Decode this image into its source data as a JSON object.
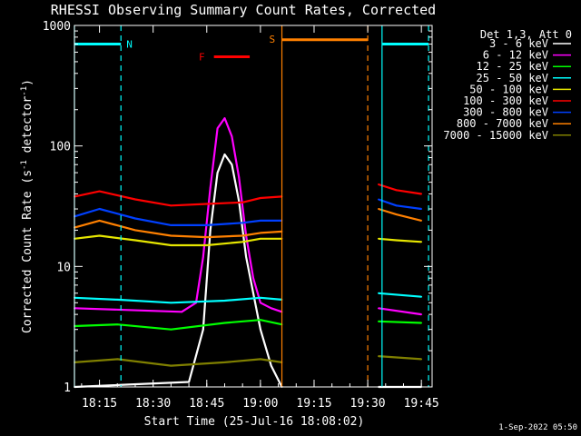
{
  "chart_data": {
    "type": "line",
    "title": "RHESSI Observing Summary Count Rates, Corrected",
    "xlabel": "Start Time (25-Jul-16 18:08:02)",
    "ylabel": "Corrected Count Rate (s^-1 detector^-1)",
    "ylabel_parts": [
      "Corrected Count Rate (s",
      "-1",
      " detector",
      "-1",
      ")"
    ],
    "y_scale": "log",
    "ylim": [
      1,
      1000
    ],
    "xlim": [
      "18:08",
      "19:48"
    ],
    "x_ticks": [
      "18:15",
      "18:30",
      "18:45",
      "19:00",
      "19:15",
      "19:30",
      "19:45"
    ],
    "y_ticks": [
      "1",
      "10",
      "100",
      "1000"
    ],
    "legend_title": "Det 1,3, Att 0",
    "legend_position": "right",
    "footer": "1-Sep-2022 05:50",
    "data_gaps": [
      [
        "19:06",
        "19:33"
      ]
    ],
    "flags": [
      {
        "label": "N",
        "color": "#00ffff",
        "y": 700,
        "intervals": [
          [
            "18:08",
            "18:21"
          ],
          [
            "19:34",
            "19:47"
          ]
        ]
      },
      {
        "label": "F",
        "color": "#ff0000",
        "y": 550,
        "intervals": [
          [
            "18:47",
            "18:57"
          ]
        ]
      },
      {
        "label": "S",
        "color": "#ff8000",
        "y": 760,
        "intervals": [
          [
            "19:06",
            "19:30"
          ]
        ]
      }
    ],
    "series": [
      {
        "name": "3 - 6 keV",
        "color": "#ffffff",
        "x": [
          "18:08",
          "18:40",
          "18:44",
          "18:46",
          "18:48",
          "18:50",
          "18:52",
          "18:54",
          "18:56",
          "18:58",
          "19:00",
          "19:03",
          "19:06",
          "19:33",
          "19:45"
        ],
        "values": [
          1.0,
          1.1,
          3.0,
          20,
          60,
          85,
          70,
          35,
          12,
          6,
          3,
          1.5,
          1.0,
          1.0,
          1.0
        ]
      },
      {
        "name": "6 - 12 keV",
        "color": "#ff00ff",
        "x": [
          "18:08",
          "18:38",
          "18:42",
          "18:44",
          "18:46",
          "18:48",
          "18:50",
          "18:52",
          "18:54",
          "18:56",
          "18:58",
          "19:00",
          "19:03",
          "19:06",
          "19:33",
          "19:45"
        ],
        "values": [
          4.5,
          4.2,
          5.0,
          12,
          45,
          140,
          170,
          120,
          55,
          18,
          8,
          5,
          4.5,
          4.2,
          4.5,
          4.0
        ]
      },
      {
        "name": "12 - 25 keV",
        "color": "#00ff00",
        "x": [
          "18:08",
          "18:20",
          "18:35",
          "18:50",
          "19:00",
          "19:06",
          "19:33",
          "19:45"
        ],
        "values": [
          3.2,
          3.3,
          3.0,
          3.4,
          3.6,
          3.3,
          3.5,
          3.4
        ]
      },
      {
        "name": "25 - 50 keV",
        "color": "#00ffff",
        "x": [
          "18:08",
          "18:20",
          "18:35",
          "18:50",
          "19:00",
          "19:06",
          "19:33",
          "19:45"
        ],
        "values": [
          5.5,
          5.3,
          5.0,
          5.2,
          5.5,
          5.3,
          6.0,
          5.6
        ]
      },
      {
        "name": "50 - 100 keV",
        "color": "#e6e600",
        "x": [
          "18:08",
          "18:15",
          "18:25",
          "18:35",
          "18:45",
          "18:55",
          "19:00",
          "19:06",
          "19:33",
          "19:38",
          "19:45"
        ],
        "values": [
          17,
          18,
          16.5,
          15,
          15,
          16,
          17,
          17,
          17,
          16.5,
          16
        ]
      },
      {
        "name": "100 - 300 keV",
        "color": "#ff0000",
        "x": [
          "18:08",
          "18:15",
          "18:25",
          "18:35",
          "18:45",
          "18:55",
          "19:00",
          "19:06",
          "19:33",
          "19:38",
          "19:45"
        ],
        "values": [
          38,
          42,
          36,
          32,
          33,
          34,
          37,
          38,
          48,
          43,
          40
        ]
      },
      {
        "name": "300 - 800 keV",
        "color": "#0040ff",
        "x": [
          "18:08",
          "18:15",
          "18:25",
          "18:35",
          "18:45",
          "18:55",
          "19:00",
          "19:06",
          "19:33",
          "19:38",
          "19:45"
        ],
        "values": [
          26,
          30,
          25,
          22,
          22,
          23,
          24,
          24,
          36,
          32,
          30
        ]
      },
      {
        "name": "800 - 7000 keV",
        "color": "#ff8000",
        "x": [
          "18:08",
          "18:15",
          "18:25",
          "18:35",
          "18:45",
          "18:55",
          "19:00",
          "19:06",
          "19:33",
          "19:38",
          "19:45"
        ],
        "values": [
          21,
          24,
          20,
          18,
          17.5,
          18,
          19,
          19.5,
          30,
          27,
          24
        ]
      },
      {
        "name": "7000 - 15000 keV",
        "color": "#808000",
        "x": [
          "18:08",
          "18:20",
          "18:35",
          "18:50",
          "19:00",
          "19:06",
          "19:33",
          "19:45"
        ],
        "values": [
          1.6,
          1.7,
          1.5,
          1.6,
          1.7,
          1.6,
          1.8,
          1.7
        ]
      }
    ]
  }
}
